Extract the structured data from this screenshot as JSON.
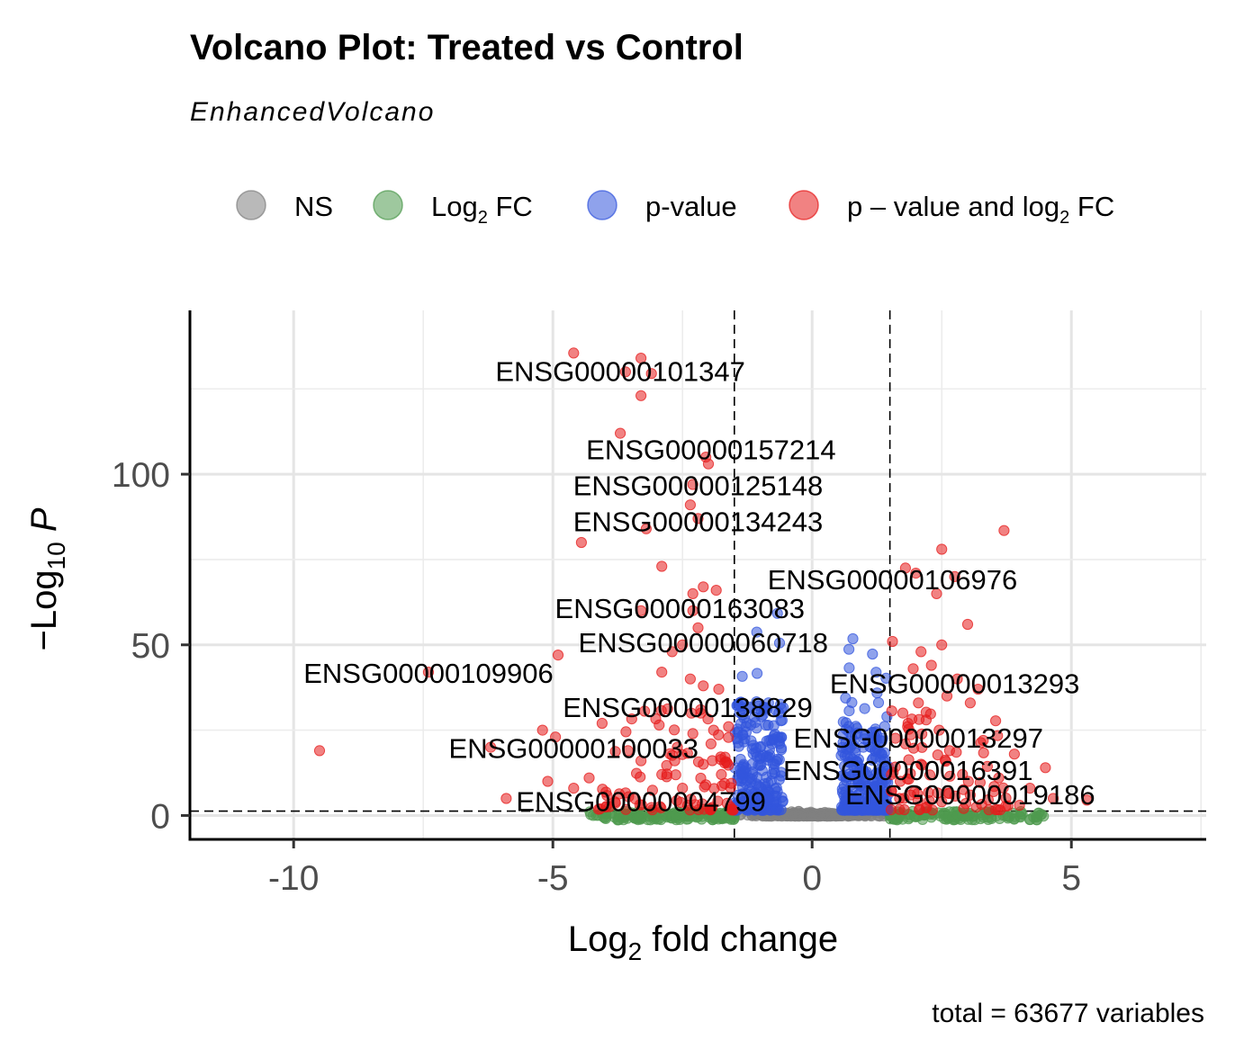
{
  "chart_data": {
    "type": "scatter",
    "title": "Volcano Plot: Treated vs Control",
    "subtitle": "EnhancedVolcano",
    "xlabel": "Log₂ fold change",
    "ylabel": "−Log₁₀ P",
    "caption": "total = 63677 variables",
    "xlim": [
      -12,
      7.6
    ],
    "ylim": [
      -7,
      148
    ],
    "x_ticks": [
      -10,
      -5,
      0,
      5
    ],
    "y_ticks": [
      0,
      50,
      100
    ],
    "grid": true,
    "legend_position": "top",
    "thresholds": {
      "log2fc": [
        -1.5,
        1.5
      ],
      "neg_log10_p": 1.3
    },
    "legend": [
      {
        "key": "NS",
        "label": "NS",
        "color": "#808080"
      },
      {
        "key": "FC",
        "label": "Log",
        "sub": "2",
        "label_after": " FC",
        "color": "#4f9a4f"
      },
      {
        "key": "P",
        "label": "p-value",
        "color": "#3355dd"
      },
      {
        "key": "FC_P",
        "label": "p – value and log",
        "sub": "2",
        "label_after": " FC",
        "color": "#e61c1c"
      }
    ],
    "series": [
      {
        "key": "FC_P",
        "points": [
          [
            -4.6,
            135.5
          ],
          [
            -3.3,
            134
          ],
          [
            -3.6,
            130
          ],
          [
            -3.1,
            129.5
          ],
          [
            -3.3,
            123
          ],
          [
            -3.7,
            112
          ],
          [
            -2.05,
            105
          ],
          [
            -2.0,
            103
          ],
          [
            -2.3,
            97
          ],
          [
            -2.35,
            91
          ],
          [
            -3.2,
            84
          ],
          [
            -2.2,
            87
          ],
          [
            -4.45,
            80
          ],
          [
            -2.9,
            73
          ],
          [
            -2.1,
            67
          ],
          [
            -2.3,
            65
          ],
          [
            -3.3,
            60
          ],
          [
            -2.3,
            60
          ],
          [
            -1.85,
            66
          ],
          [
            -2.2,
            55
          ],
          [
            -2.5,
            50
          ],
          [
            -2.7,
            48
          ],
          [
            -4.9,
            47
          ],
          [
            -2.9,
            42
          ],
          [
            -7.4,
            42
          ],
          [
            -2.35,
            40
          ],
          [
            -2.1,
            38
          ],
          [
            -1.8,
            37
          ],
          [
            -4.05,
            27
          ],
          [
            -2.95,
            26.5
          ],
          [
            -5.2,
            25
          ],
          [
            -4.95,
            23
          ],
          [
            -2.3,
            24
          ],
          [
            -2.6,
            20
          ],
          [
            -1.95,
            21
          ],
          [
            -6.2,
            20
          ],
          [
            -3.3,
            16
          ],
          [
            -9.5,
            19
          ],
          [
            -4.3,
            11
          ],
          [
            -5.1,
            10
          ],
          [
            -4.6,
            8
          ],
          [
            -5.9,
            5
          ],
          [
            -2.9,
            12
          ],
          [
            -1.75,
            12
          ],
          [
            -2.1,
            15
          ],
          [
            -2.5,
            8
          ],
          [
            -3.8,
            4
          ],
          [
            -2.4,
            3
          ],
          [
            -1.9,
            25
          ],
          [
            -2.15,
            31
          ],
          [
            -3.55,
            19
          ],
          [
            -2.65,
            16
          ],
          [
            -2.05,
            9
          ],
          [
            3.7,
            83.5
          ],
          [
            2.5,
            78
          ],
          [
            2.75,
            70
          ],
          [
            1.8,
            72.5
          ],
          [
            2.0,
            71
          ],
          [
            2.4,
            65
          ],
          [
            3.0,
            56
          ],
          [
            1.55,
            51
          ],
          [
            2.1,
            48
          ],
          [
            2.5,
            50
          ],
          [
            2.3,
            44
          ],
          [
            1.95,
            43
          ],
          [
            2.8,
            40
          ],
          [
            3.2,
            37
          ],
          [
            2.6,
            35
          ],
          [
            2.05,
            33
          ],
          [
            3.05,
            33
          ],
          [
            1.75,
            30
          ],
          [
            2.2,
            28
          ],
          [
            1.85,
            27
          ],
          [
            2.45,
            25
          ],
          [
            3.3,
            22
          ],
          [
            1.8,
            21
          ],
          [
            2.65,
            19
          ],
          [
            3.9,
            18
          ],
          [
            4.5,
            14
          ],
          [
            2.1,
            15
          ],
          [
            3.6,
            11
          ],
          [
            4.2,
            8
          ],
          [
            4.65,
            5
          ],
          [
            3.05,
            6
          ],
          [
            2.5,
            4
          ],
          [
            5.3,
            4.5
          ],
          [
            1.7,
            10
          ],
          [
            2.9,
            12
          ],
          [
            4.0,
            3
          ],
          [
            3.5,
            7
          ],
          [
            1.9,
            6
          ]
        ]
      }
    ],
    "labels": [
      {
        "text": "ENSG00000101347",
        "x": -3.7,
        "y": 129.5
      },
      {
        "text": "ENSG00000157214",
        "x": -1.95,
        "y": 106.5
      },
      {
        "text": "ENSG00000125148",
        "x": -2.2,
        "y": 96
      },
      {
        "text": "ENSG00000134243",
        "x": -2.2,
        "y": 85.5
      },
      {
        "text": "ENSG00000106976",
        "x": 1.55,
        "y": 68.5
      },
      {
        "text": "ENSG00000163083",
        "x": -2.55,
        "y": 60
      },
      {
        "text": "ENSG00000060718",
        "x": -2.1,
        "y": 50
      },
      {
        "text": "ENSG00000109906",
        "x": -7.4,
        "y": 41
      },
      {
        "text": "ENSG00000013293",
        "x": 2.75,
        "y": 38
      },
      {
        "text": "ENSG00000138829",
        "x": -2.4,
        "y": 31
      },
      {
        "text": "ENSG00000013297",
        "x": 2.05,
        "y": 22
      },
      {
        "text": "ENSG00000100033",
        "x": -4.6,
        "y": 19
      },
      {
        "text": "ENSG00000016391",
        "x": 1.85,
        "y": 12.5
      },
      {
        "text": "ENSG00000004799",
        "x": -3.3,
        "y": 3.5
      },
      {
        "text": "ENSG00000019186",
        "x": 3.05,
        "y": 5.5
      }
    ]
  }
}
